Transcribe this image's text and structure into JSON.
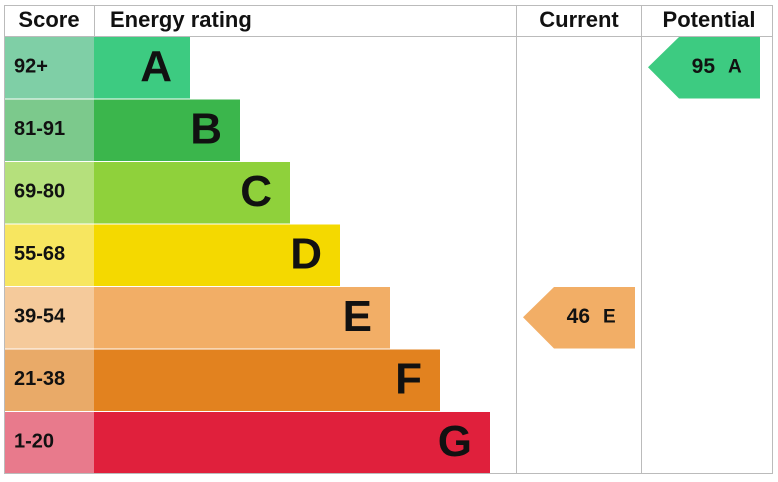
{
  "header": {
    "score": "Score",
    "rating": "Energy rating",
    "current": "Current",
    "potential": "Potential"
  },
  "bands": [
    {
      "score": "92+",
      "letter": "A",
      "color": "#3dcb81",
      "score_color": "#7fcfa6"
    },
    {
      "score": "81-91",
      "letter": "B",
      "color": "#3bb64c",
      "score_color": "#7cc98c"
    },
    {
      "score": "69-80",
      "letter": "C",
      "color": "#8fd13b",
      "score_color": "#b5e07c"
    },
    {
      "score": "55-68",
      "letter": "D",
      "color": "#f4d900",
      "score_color": "#f7e660"
    },
    {
      "score": "39-54",
      "letter": "E",
      "color": "#f2ae66",
      "score_color": "#f5ca9b"
    },
    {
      "score": "21-38",
      "letter": "F",
      "color": "#e2821f",
      "score_color": "#e9aa68"
    },
    {
      "score": "1-20",
      "letter": "G",
      "color": "#e0203c",
      "score_color": "#e87a8c"
    }
  ],
  "current": {
    "value": 46,
    "letter": "E"
  },
  "potential": {
    "value": 95,
    "letter": "A"
  }
}
